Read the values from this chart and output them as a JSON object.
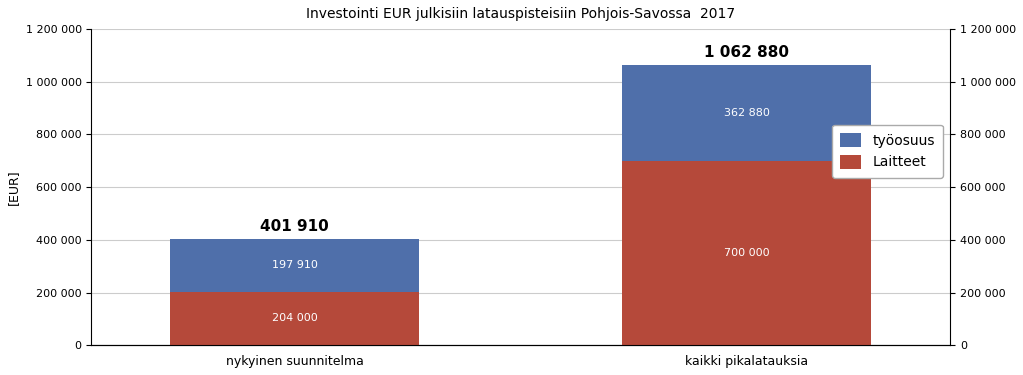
{
  "title": "Investointi EUR julkisiin latauspisteisiin Pohjois-Savossa  2017",
  "categories": [
    "nykyinen suunnitelma",
    "kaikki pikalatauksia"
  ],
  "laitteet": [
    204000,
    700000
  ],
  "tyoosuus": [
    197910,
    362880
  ],
  "total_labels": [
    "401 910",
    "1 062 880"
  ],
  "laitteet_labels": [
    "204 000",
    "700 000"
  ],
  "tyoosuus_labels": [
    "197 910",
    "362 880"
  ],
  "color_tyoosuus": "#4f6faa",
  "color_laitteet": "#b5493a",
  "ylabel": "[EUR]",
  "ylim": [
    0,
    1200000
  ],
  "yticks": [
    0,
    200000,
    400000,
    600000,
    800000,
    1000000,
    1200000
  ],
  "legend_labels": [
    "työosuus",
    "Laitteet"
  ],
  "background_color": "#ffffff",
  "grid_color": "#cccccc",
  "bar_width": 0.55
}
